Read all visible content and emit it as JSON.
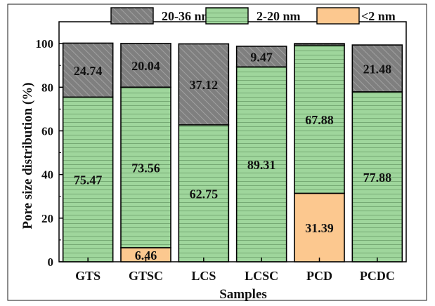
{
  "chart_data": {
    "type": "bar",
    "stacked": true,
    "categories": [
      "GTS",
      "GTSC",
      "LCS",
      "LCSC",
      "PCD",
      "PCDC"
    ],
    "series": [
      {
        "name": "<2 nm",
        "values": [
          0,
          6.46,
          0,
          0,
          31.39,
          0
        ],
        "color": "#fcc88f",
        "pattern": "none"
      },
      {
        "name": "2-20 nm",
        "values": [
          75.47,
          73.56,
          62.75,
          89.31,
          67.88,
          77.88
        ],
        "color": "#9fd69c",
        "pattern": "horizontal-lines"
      },
      {
        "name": "20-36 nm",
        "values": [
          24.74,
          20.04,
          37.12,
          9.47,
          0.73,
          21.48
        ],
        "color": "#7f7f7f",
        "pattern": "diagonal-hatch"
      }
    ],
    "data_labels": [
      {
        "category": "GTS",
        "series": "20-36 nm",
        "text": "24.74"
      },
      {
        "category": "GTS",
        "series": "2-20 nm",
        "text": "75.47"
      },
      {
        "category": "GTSC",
        "series": "20-36 nm",
        "text": "20.04"
      },
      {
        "category": "GTSC",
        "series": "2-20 nm",
        "text": "73.56"
      },
      {
        "category": "GTSC",
        "series": "<2 nm",
        "text": "6.46"
      },
      {
        "category": "LCS",
        "series": "20-36 nm",
        "text": "37.12"
      },
      {
        "category": "LCS",
        "series": "2-20 nm",
        "text": "62.75"
      },
      {
        "category": "LCSC",
        "series": "20-36 nm",
        "text": "9.47"
      },
      {
        "category": "LCSC",
        "series": "2-20 nm",
        "text": "89.31"
      },
      {
        "category": "PCD",
        "series": "2-20 nm",
        "text": "67.88"
      },
      {
        "category": "PCD",
        "series": "<2 nm",
        "text": "31.39"
      },
      {
        "category": "PCDC",
        "series": "20-36 nm",
        "text": "21.48"
      },
      {
        "category": "PCDC",
        "series": "2-20 nm",
        "text": "77.88"
      }
    ],
    "xlabel": "Samples",
    "ylabel": "Pore size distribution  (%)",
    "ylim": [
      0,
      110
    ],
    "yticks": [
      0,
      20,
      40,
      60,
      80,
      100
    ],
    "grid": false,
    "legend_position": "top"
  }
}
